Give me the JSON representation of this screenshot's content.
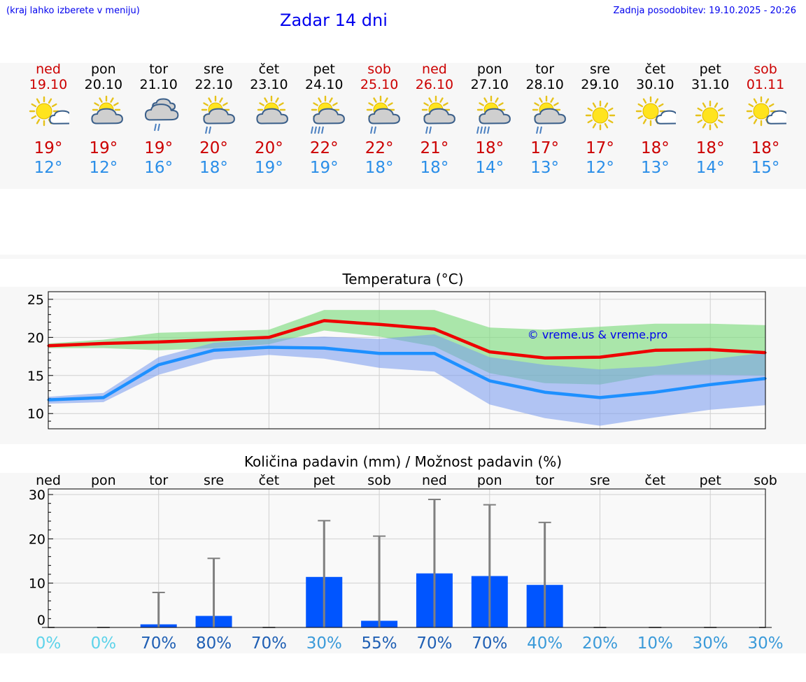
{
  "header": {
    "hint": "(kraj lahko izberete v meniju)",
    "title": "Zadar 14 dni",
    "updated": "Zadnja posodobitev: 19.10.2025 - 20:26"
  },
  "days": [
    {
      "name": "ned",
      "date": "19.10",
      "max": "19°",
      "min": "12°",
      "weekend": true,
      "icon": "sun-cloud-icon"
    },
    {
      "name": "pon",
      "date": "20.10",
      "max": "19°",
      "min": "12°",
      "weekend": false,
      "icon": "cloud-sun-icon"
    },
    {
      "name": "tor",
      "date": "21.10",
      "max": "19°",
      "min": "16°",
      "weekend": false,
      "icon": "cloud-rain-icon"
    },
    {
      "name": "sre",
      "date": "22.10",
      "max": "20°",
      "min": "18°",
      "weekend": false,
      "icon": "sun-cloud-rain-icon"
    },
    {
      "name": "čet",
      "date": "23.10",
      "max": "20°",
      "min": "19°",
      "weekend": false,
      "icon": "cloud-sun-icon"
    },
    {
      "name": "pet",
      "date": "24.10",
      "max": "22°",
      "min": "19°",
      "weekend": false,
      "icon": "sun-cloud-heavy-rain-icon"
    },
    {
      "name": "sob",
      "date": "25.10",
      "max": "22°",
      "min": "18°",
      "weekend": true,
      "icon": "sun-cloud-rain-icon"
    },
    {
      "name": "ned",
      "date": "26.10",
      "max": "21°",
      "min": "18°",
      "weekend": true,
      "icon": "sun-cloud-rain-icon"
    },
    {
      "name": "pon",
      "date": "27.10",
      "max": "18°",
      "min": "14°",
      "weekend": false,
      "icon": "sun-cloud-heavy-rain-icon"
    },
    {
      "name": "tor",
      "date": "28.10",
      "max": "17°",
      "min": "13°",
      "weekend": false,
      "icon": "sun-cloud-rain-icon"
    },
    {
      "name": "sre",
      "date": "29.10",
      "max": "17°",
      "min": "12°",
      "weekend": false,
      "icon": "sun-icon"
    },
    {
      "name": "čet",
      "date": "30.10",
      "max": "18°",
      "min": "13°",
      "weekend": false,
      "icon": "sun-cloud-icon"
    },
    {
      "name": "pet",
      "date": "31.10",
      "max": "18°",
      "min": "14°",
      "weekend": false,
      "icon": "sun-icon"
    },
    {
      "name": "sob",
      "date": "01.11",
      "max": "18°",
      "min": "15°",
      "weekend": true,
      "icon": "sun-cloud-icon"
    }
  ],
  "colors": {
    "red": "#ee0000",
    "blue": "#1e90ff",
    "bar": "#0055ff",
    "green_band": "#7fdc7f",
    "blue_band": "#7799ee"
  },
  "chart_data": [
    {
      "type": "line",
      "title": "Temperatura (°C)",
      "watermark": "© vreme.us & vreme.pro",
      "ylim": [
        8,
        26
      ],
      "yticks": [
        10,
        15,
        20,
        25
      ],
      "x": [
        0,
        1,
        2,
        3,
        4,
        5,
        6,
        7,
        8,
        9,
        10,
        11,
        12,
        13
      ],
      "series": [
        {
          "name": "max",
          "values": [
            18.9,
            19.2,
            19.4,
            19.7,
            20.0,
            22.2,
            21.7,
            21.1,
            18.1,
            17.3,
            17.4,
            18.3,
            18.4,
            18.0
          ]
        },
        {
          "name": "min",
          "values": [
            11.8,
            12.1,
            16.4,
            18.3,
            18.7,
            18.6,
            17.9,
            17.9,
            14.3,
            12.8,
            12.1,
            12.8,
            13.8,
            14.6
          ]
        }
      ],
      "bands": [
        {
          "name": "max range",
          "upper": [
            19.2,
            19.7,
            20.6,
            20.8,
            21.0,
            23.6,
            23.6,
            23.6,
            21.3,
            21.0,
            21.4,
            21.8,
            21.8,
            21.6
          ],
          "lower": [
            18.6,
            18.6,
            18.3,
            18.6,
            19.1,
            20.9,
            20.1,
            18.8,
            15.3,
            14.0,
            13.8,
            15.1,
            15.1,
            15.0
          ]
        },
        {
          "name": "min range",
          "upper": [
            12.2,
            12.7,
            17.4,
            19.3,
            19.8,
            20.1,
            19.8,
            20.4,
            17.4,
            16.4,
            15.8,
            16.2,
            17.1,
            18.0
          ],
          "lower": [
            11.3,
            11.5,
            15.1,
            17.1,
            17.7,
            17.2,
            16.0,
            15.5,
            11.2,
            9.4,
            8.4,
            9.5,
            10.5,
            11.1
          ]
        }
      ]
    },
    {
      "type": "bar",
      "title": "Količina padavin (mm) / Možnost padavin (%)",
      "ylim": [
        0,
        30
      ],
      "yticks": [
        0,
        10,
        20,
        30
      ],
      "categories": [
        "ned",
        "pon",
        "tor",
        "sre",
        "čet",
        "pet",
        "sob",
        "ned",
        "pon",
        "tor",
        "sre",
        "čet",
        "pet",
        "sob"
      ],
      "values": [
        0,
        0,
        0.7,
        2.6,
        0,
        11.4,
        1.5,
        12.2,
        11.6,
        9.6,
        0,
        0,
        0,
        0
      ],
      "error_max": [
        0,
        0,
        7.9,
        15.6,
        0,
        24.1,
        20.6,
        28.9,
        27.7,
        23.7,
        0,
        0,
        0,
        0
      ],
      "probability": [
        "0%",
        "0%",
        "70%",
        "80%",
        "70%",
        "30%",
        "55%",
        "70%",
        "70%",
        "40%",
        "20%",
        "10%",
        "30%",
        "30%"
      ]
    }
  ]
}
